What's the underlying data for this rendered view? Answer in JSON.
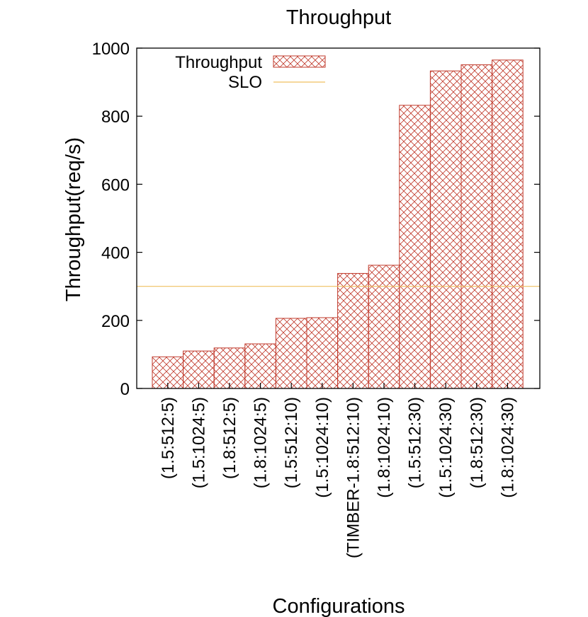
{
  "chart_data": {
    "type": "bar",
    "title": "Throughput",
    "xlabel": "Configurations",
    "ylabel": "Throughput(req/s)",
    "ylim": [
      0,
      1000
    ],
    "yticks": [
      "0",
      "200",
      "400",
      "600",
      "800",
      "1000"
    ],
    "categories": [
      "(1.5:512:5)",
      "(1.5:1024:5)",
      "(1.8:512:5)",
      "(1.8:1024:5)",
      "(1.5:512:10)",
      "(1.5:1024:10)",
      "(TIMBER-1.8:512:10)",
      "(1.8:1024:10)",
      "(1.5:512:30)",
      "(1.5:1024:30)",
      "(1.8:512:30)",
      "(1.8:1024:30)"
    ],
    "series": [
      {
        "name": "Throughput",
        "values": [
          93,
          110,
          119,
          131,
          206,
          208,
          338,
          362,
          832,
          933,
          951,
          965
        ]
      }
    ],
    "reference_line": {
      "name": "SLO",
      "value": 300
    },
    "legend_position": "top-left",
    "grid": false,
    "colors": {
      "bar": "#c0392b",
      "slo": "#f0c060",
      "axis": "#000000"
    }
  }
}
